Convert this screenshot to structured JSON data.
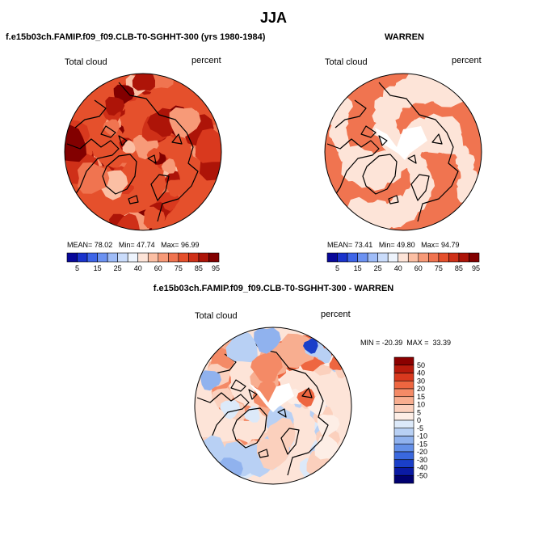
{
  "page": {
    "title": "JJA"
  },
  "panels": {
    "left": {
      "header": "f.e15b03ch.FAMIP.f09_f09.CLB-T0-SGHHT-300 (yrs 1980-1984)",
      "variable": "Total cloud",
      "units": "percent",
      "stats": {
        "mean_label": "MEAN=",
        "mean": "78.02",
        "min_label": "Min=",
        "min": "47.74",
        "max_label": "Max=",
        "max": "96.99"
      }
    },
    "right": {
      "header": "WARREN",
      "variable": "Total cloud",
      "units": "percent",
      "stats": {
        "mean_label": "MEAN=",
        "mean": "73.41",
        "min_label": "Min=",
        "min": "49.80",
        "max_label": "Max=",
        "max": "94.79"
      }
    },
    "diff": {
      "header": "f.e15b03ch.FAMIP.f09_f09.CLB-T0-SGHHT-300 - WARREN",
      "variable": "Total cloud",
      "units": "percent",
      "minmax": "MIN = -20.39  MAX =  33.39"
    }
  },
  "chart_data": [
    {
      "type": "heatmap",
      "title": "f.e15b03ch.FAMIP.f09_f09.CLB-T0-SGHHT-300 (yrs 1980-1984)",
      "variable": "Total cloud",
      "units": "percent",
      "projection": "polar stereographic (north pole)",
      "summary": {
        "mean": 78.02,
        "min": 47.74,
        "max": 96.99
      },
      "colorbar": {
        "orientation": "horizontal",
        "tick_labels": [
          "5",
          "15",
          "25",
          "40",
          "60",
          "75",
          "85",
          "95"
        ],
        "colors": [
          "#08089a",
          "#1a33cc",
          "#3e65e8",
          "#6c92f2",
          "#9fbcf8",
          "#cadcfb",
          "#eef4fd",
          "#fde4d8",
          "#fbbfa4",
          "#f79a78",
          "#f07450",
          "#e5502c",
          "#cf3018",
          "#ad1408",
          "#820000"
        ]
      }
    },
    {
      "type": "heatmap",
      "title": "WARREN",
      "variable": "Total cloud",
      "units": "percent",
      "projection": "polar stereographic (north pole)",
      "summary": {
        "mean": 73.41,
        "min": 49.8,
        "max": 94.79
      },
      "colorbar": {
        "orientation": "horizontal",
        "tick_labels": [
          "5",
          "15",
          "25",
          "40",
          "60",
          "75",
          "85",
          "95"
        ],
        "colors": [
          "#08089a",
          "#1a33cc",
          "#3e65e8",
          "#6c92f2",
          "#9fbcf8",
          "#cadcfb",
          "#eef4fd",
          "#fde4d8",
          "#fbbfa4",
          "#f79a78",
          "#f07450",
          "#e5502c",
          "#cf3018",
          "#ad1408",
          "#820000"
        ]
      }
    },
    {
      "type": "heatmap",
      "title": "f.e15b03ch.FAMIP.f09_f09.CLB-T0-SGHHT-300 - WARREN",
      "variable": "Total cloud",
      "units": "percent",
      "projection": "polar stereographic (north pole)",
      "summary": {
        "min": -20.39,
        "max": 33.39
      },
      "colorbar": {
        "orientation": "vertical",
        "tick_labels": [
          "50",
          "40",
          "30",
          "20",
          "15",
          "10",
          "5",
          "0",
          "-5",
          "-10",
          "-15",
          "-20",
          "-30",
          "-40",
          "-50"
        ],
        "colors": [
          "#8b0000",
          "#b81a0c",
          "#d9391e",
          "#ee6640",
          "#f48a66",
          "#f8ae90",
          "#fbd0bd",
          "#fdeee6",
          "#dce9f9",
          "#b8d0f4",
          "#90b2ee",
          "#6490e8",
          "#3a68de",
          "#1a3fc9",
          "#0a1aa4",
          "#000070"
        ]
      }
    }
  ]
}
